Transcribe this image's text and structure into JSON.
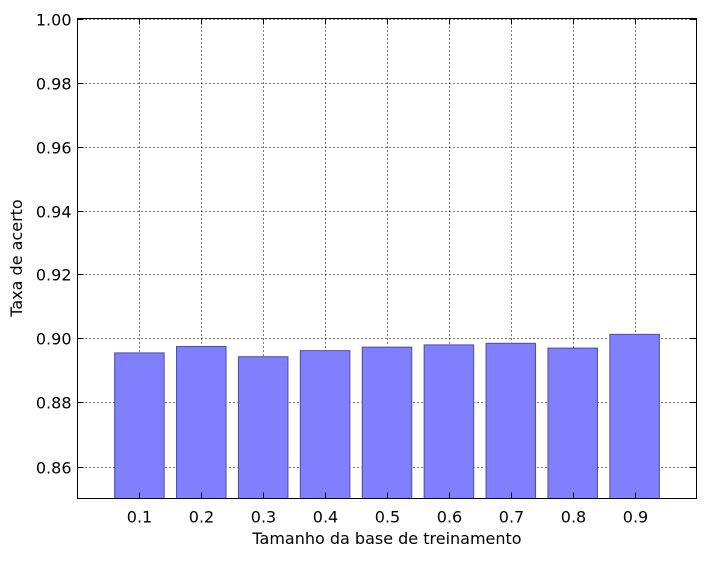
{
  "chart_data": {
    "type": "bar",
    "title": "",
    "xlabel": "Tamanho da base de treinamento",
    "ylabel": "Taxa de acerto",
    "categories": [
      "0.1",
      "0.2",
      "0.3",
      "0.4",
      "0.5",
      "0.6",
      "0.7",
      "0.8",
      "0.9"
    ],
    "values": [
      0.8955,
      0.8975,
      0.8943,
      0.8962,
      0.8973,
      0.898,
      0.8985,
      0.897,
      0.9013
    ],
    "ylim": [
      0.85,
      1.0
    ],
    "yticks": [
      "0.86",
      "0.88",
      "0.90",
      "0.92",
      "0.94",
      "0.96",
      "0.98",
      "1.00"
    ],
    "grid": true,
    "bar_color": "#8080ff",
    "bar_edge_color": "#4d4d99"
  }
}
